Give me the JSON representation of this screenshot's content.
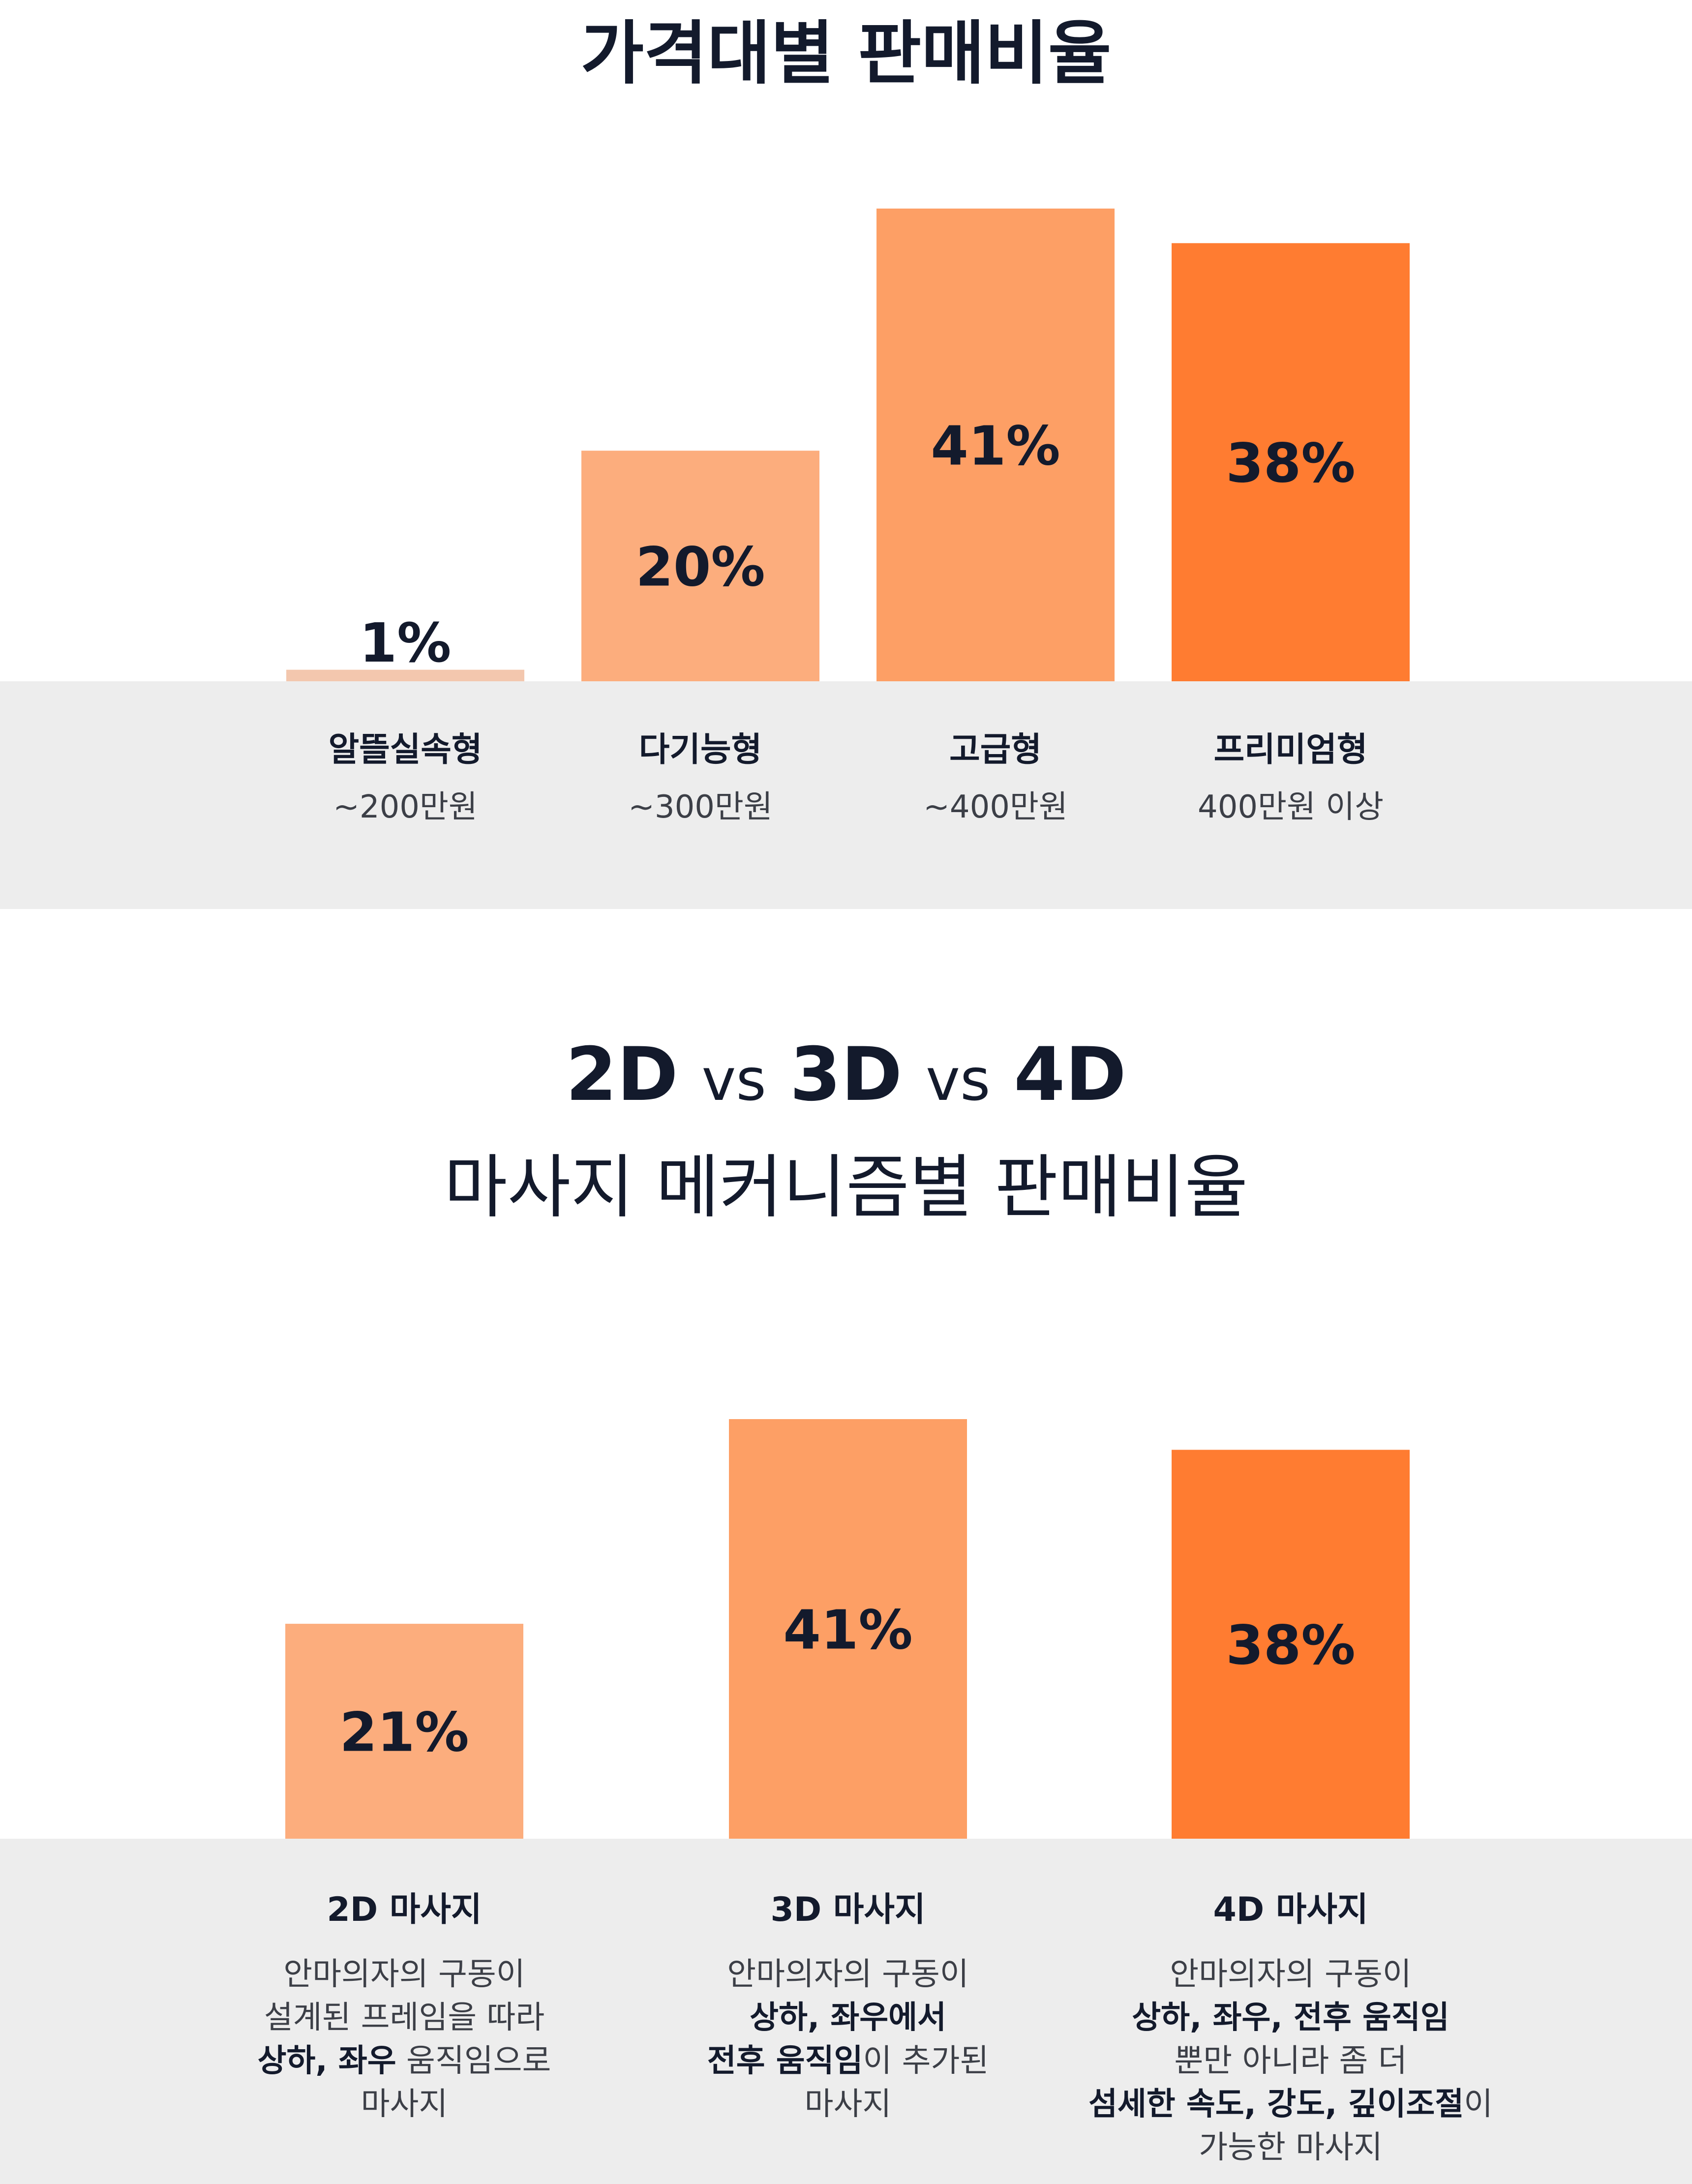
{
  "chart_data": [
    {
      "type": "bar",
      "title": "가격대별 판매비율",
      "categories": [
        "알뜰실속형",
        "다기능형",
        "고급형",
        "프리미엄형"
      ],
      "category_subtitles": [
        "~200만원",
        "~300만원",
        "~400만원",
        "400만원 이상"
      ],
      "values": [
        1,
        20,
        41,
        38
      ],
      "value_labels": [
        "1%",
        "20%",
        "41%",
        "38%"
      ],
      "unit": "%",
      "colors": [
        "#f3c7ae",
        "#fcad7d",
        "#fd9f65",
        "#ff7c31"
      ],
      "ylim": [
        0,
        41
      ],
      "grid": false,
      "legend": "none"
    },
    {
      "type": "bar",
      "title_parts": [
        "2D",
        "vs",
        "3D",
        "vs",
        "4D"
      ],
      "subtitle": "마사지 메커니즘별 판매비율",
      "categories": [
        "2D 마사지",
        "3D 마사지",
        "4D 마사지"
      ],
      "descriptions": [
        [
          [
            {
              "t": "안마의자의 구동이",
              "b": false
            }
          ],
          [
            {
              "t": "설계된 프레임을 따라",
              "b": false
            }
          ],
          [
            {
              "t": "상하, 좌우",
              "b": true
            },
            {
              "t": " 움직임으로",
              "b": false
            }
          ],
          [
            {
              "t": "마사지",
              "b": false
            }
          ]
        ],
        [
          [
            {
              "t": "안마의자의 구동이",
              "b": false
            }
          ],
          [
            {
              "t": "상하, 좌우에서",
              "b": true
            }
          ],
          [
            {
              "t": "전후 움직임",
              "b": true
            },
            {
              "t": "이 추가된",
              "b": false
            }
          ],
          [
            {
              "t": "마사지",
              "b": false
            }
          ]
        ],
        [
          [
            {
              "t": "안마의자의 구동이",
              "b": false
            }
          ],
          [
            {
              "t": "상하, 좌우, 전후 움직임",
              "b": true
            }
          ],
          [
            {
              "t": "뿐만 아니라 좀 더",
              "b": false
            }
          ],
          [
            {
              "t": "섬세한 속도, 강도, 깊이조절",
              "b": true
            },
            {
              "t": "이",
              "b": false
            }
          ],
          [
            {
              "t": "가능한 마사지",
              "b": false
            }
          ]
        ]
      ],
      "values": [
        21,
        41,
        38
      ],
      "value_labels": [
        "21%",
        "41%",
        "38%"
      ],
      "unit": "%",
      "colors": [
        "#fcad7d",
        "#fd9f65",
        "#ff7c31"
      ],
      "ylim": [
        0,
        41
      ],
      "grid": false,
      "legend": "none"
    }
  ]
}
